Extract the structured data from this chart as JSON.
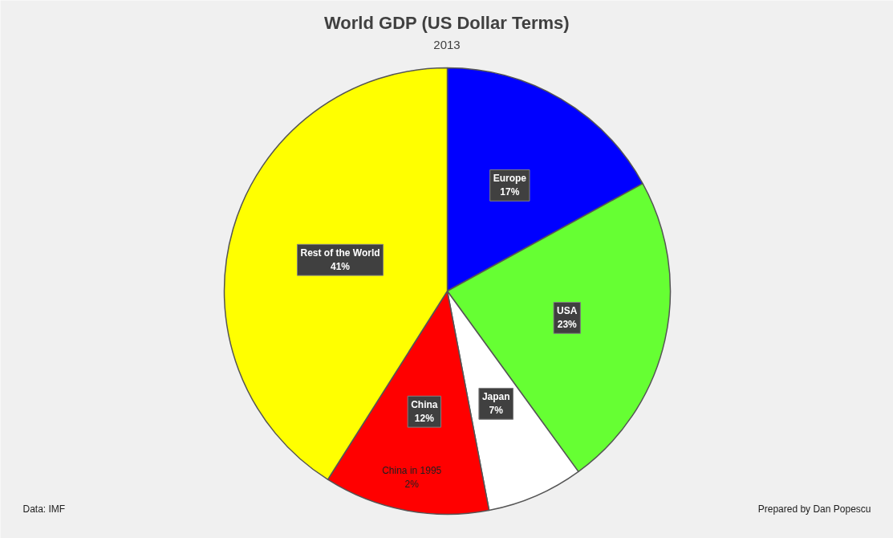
{
  "chart_data": {
    "type": "pie",
    "title": "World GDP (US Dollar Terms)",
    "subtitle": "2013",
    "categories": [
      "Europe",
      "USA",
      "Japan",
      "China",
      "Rest of the World"
    ],
    "values": [
      17,
      23,
      7,
      12,
      41
    ],
    "colors": [
      "#0000ff",
      "#66ff33",
      "#ffffff",
      "#ff0000",
      "#ffff00"
    ],
    "value_labels": [
      "17%",
      "23%",
      "7%",
      "12%",
      "41%"
    ],
    "annotations": [
      "Data: IMF",
      "Prepared by Dan Popescu",
      "China in 1995\n2%"
    ]
  }
}
